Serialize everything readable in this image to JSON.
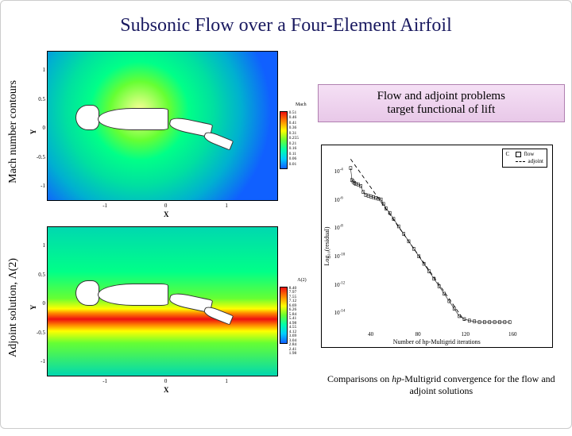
{
  "title": "Subsonic Flow over a Four-Element Airfoil",
  "left_plots": [
    {
      "side_label": "Mach number contours",
      "axis": {
        "x_title": "X",
        "y_title": "Y",
        "x_ticks": [
          -1,
          0,
          1
        ],
        "y_ticks": [
          -1,
          -0.5,
          0,
          0.5,
          1
        ],
        "xlim": [
          -1.5,
          1.8
        ],
        "ylim": [
          -1.4,
          1.2
        ]
      },
      "gradient_css": "radial-gradient(circle at 40% 40%, #ffff9a 0%, #66ff33 18%, #00ff88 30%, #00e0a0 45%, #00b0d0 62%, #1060ff 80%)",
      "colorbar": {
        "title": "Mach",
        "gradient_css": "linear-gradient(to bottom, #ee1010, #ff8800, #ffff00, #66ff33, #00ffaa, #00ccff, #1060ff)",
        "labels": [
          "0.51",
          "0.46",
          "0.41",
          "0.36",
          "0.31",
          "0.255",
          "0.21",
          "0.16",
          "0.11",
          "0.06",
          "0.01"
        ]
      },
      "airfoils": [
        {
          "left_pct": 12,
          "top_pct": 36,
          "w_pct": 10,
          "h_pct": 16,
          "radius": "50% 30% 30% 50%"
        },
        {
          "left_pct": 22,
          "top_pct": 38,
          "w_pct": 30,
          "h_pct": 14,
          "radius": "50% 10% 10% 50%"
        },
        {
          "left_pct": 53,
          "top_pct": 46,
          "w_pct": 18,
          "h_pct": 8,
          "radius": "40% 10% 10% 40%",
          "rotate": 12
        },
        {
          "left_pct": 68,
          "top_pct": 56,
          "w_pct": 12,
          "h_pct": 6,
          "radius": "40% 10% 10% 40%",
          "rotate": 22
        }
      ]
    },
    {
      "side_label": "Adjoint solution, Λ(2)",
      "axis": {
        "x_title": "X",
        "y_title": "Y",
        "x_ticks": [
          -1,
          0,
          1
        ],
        "y_ticks": [
          -1,
          -0.5,
          0,
          0.5,
          1
        ],
        "xlim": [
          -1.5,
          1.8
        ],
        "ylim": [
          -1.4,
          1.2
        ]
      },
      "gradient_css": "linear-gradient(to bottom, #00d8b0 0%, #00ff88 30%, #66ff33 48%, #ffff00 55%, #ff8800 58%, #ee1010 62%, #ff8800 66%, #ffff00 70%, #66ff33 78%, #00d8b0 100%)",
      "colorbar": {
        "title": "Λ(2)",
        "gradient_css": "linear-gradient(to bottom, #ee1010, #ff8800, #ffff00, #66ff33, #00ffaa, #00ccff, #1060ff)",
        "labels": [
          "8.40",
          "7.97",
          "7.55",
          "7.12",
          "6.69",
          "6.26",
          "5.84",
          "5.41",
          "4.98",
          "4.55",
          "4.12",
          "3.69",
          "3.04",
          "2.84",
          "2.41",
          "1.98"
        ]
      },
      "airfoils": [
        {
          "left_pct": 12,
          "top_pct": 36,
          "w_pct": 10,
          "h_pct": 16,
          "radius": "50% 30% 30% 50%"
        },
        {
          "left_pct": 22,
          "top_pct": 38,
          "w_pct": 30,
          "h_pct": 14,
          "radius": "50% 10% 10% 50%"
        },
        {
          "left_pct": 53,
          "top_pct": 46,
          "w_pct": 18,
          "h_pct": 8,
          "radius": "40% 10% 10% 40%",
          "rotate": 12
        },
        {
          "left_pct": 68,
          "top_pct": 56,
          "w_pct": 12,
          "h_pct": 6,
          "radius": "40% 10% 10% 40%",
          "rotate": 22
        }
      ]
    }
  ],
  "info_box": {
    "line1": "Flow and adjoint problems",
    "line2": "target functional of lift"
  },
  "convergence": {
    "ylabel": "Log₁₀(residual)",
    "xlabel": "Number of hp-Multigrid iterations",
    "xlim": [
      20,
      180
    ],
    "ylim_exp": [
      -15,
      -3
    ],
    "x_ticks": [
      40,
      80,
      120,
      160
    ],
    "y_tick_exponents": [
      -4,
      -6,
      -8,
      -10,
      -12,
      -14
    ],
    "legend": [
      {
        "marker": "square",
        "label": "flow",
        "key": "C"
      },
      {
        "marker": "dash",
        "label": "adjoint",
        "key": ""
      }
    ],
    "series_flow": [
      [
        24,
        -4.2
      ],
      [
        25,
        -5.0
      ],
      [
        26,
        -5.1
      ],
      [
        27,
        -5.2
      ],
      [
        28,
        -5.25
      ],
      [
        30,
        -5.3
      ],
      [
        32,
        -5.4
      ],
      [
        34,
        -5.8
      ],
      [
        36,
        -6.0
      ],
      [
        38,
        -6.05
      ],
      [
        40,
        -6.1
      ],
      [
        42,
        -6.15
      ],
      [
        44,
        -6.2
      ],
      [
        46,
        -6.25
      ],
      [
        48,
        -6.3
      ],
      [
        50,
        -6.6
      ],
      [
        52,
        -6.9
      ],
      [
        55,
        -7.2
      ],
      [
        58,
        -7.6
      ],
      [
        62,
        -8.1
      ],
      [
        66,
        -8.6
      ],
      [
        70,
        -9.1
      ],
      [
        74,
        -9.6
      ],
      [
        78,
        -10.1
      ],
      [
        82,
        -10.6
      ],
      [
        86,
        -11.1
      ],
      [
        90,
        -11.6
      ],
      [
        94,
        -12.1
      ],
      [
        98,
        -12.6
      ],
      [
        102,
        -13.1
      ],
      [
        106,
        -13.6
      ],
      [
        110,
        -14.1
      ],
      [
        114,
        -14.3
      ],
      [
        118,
        -14.4
      ],
      [
        122,
        -14.45
      ],
      [
        126,
        -14.5
      ],
      [
        130,
        -14.5
      ],
      [
        134,
        -14.5
      ],
      [
        138,
        -14.5
      ],
      [
        142,
        -14.5
      ],
      [
        146,
        -14.5
      ],
      [
        150,
        -14.5
      ]
    ],
    "series_adjoint": [
      [
        24,
        -3.6
      ],
      [
        40,
        -5.5
      ],
      [
        60,
        -7.9
      ],
      [
        80,
        -10.3
      ],
      [
        100,
        -12.7
      ],
      [
        114,
        -14.4
      ]
    ]
  },
  "caption_pre": "Comparisons on ",
  "caption_it": "hp",
  "caption_post": "-Multigrid convergence for the flow and adjoint solutions",
  "colors": {
    "title_color": "#1a1a60",
    "info_box_border": "#b080b0"
  }
}
